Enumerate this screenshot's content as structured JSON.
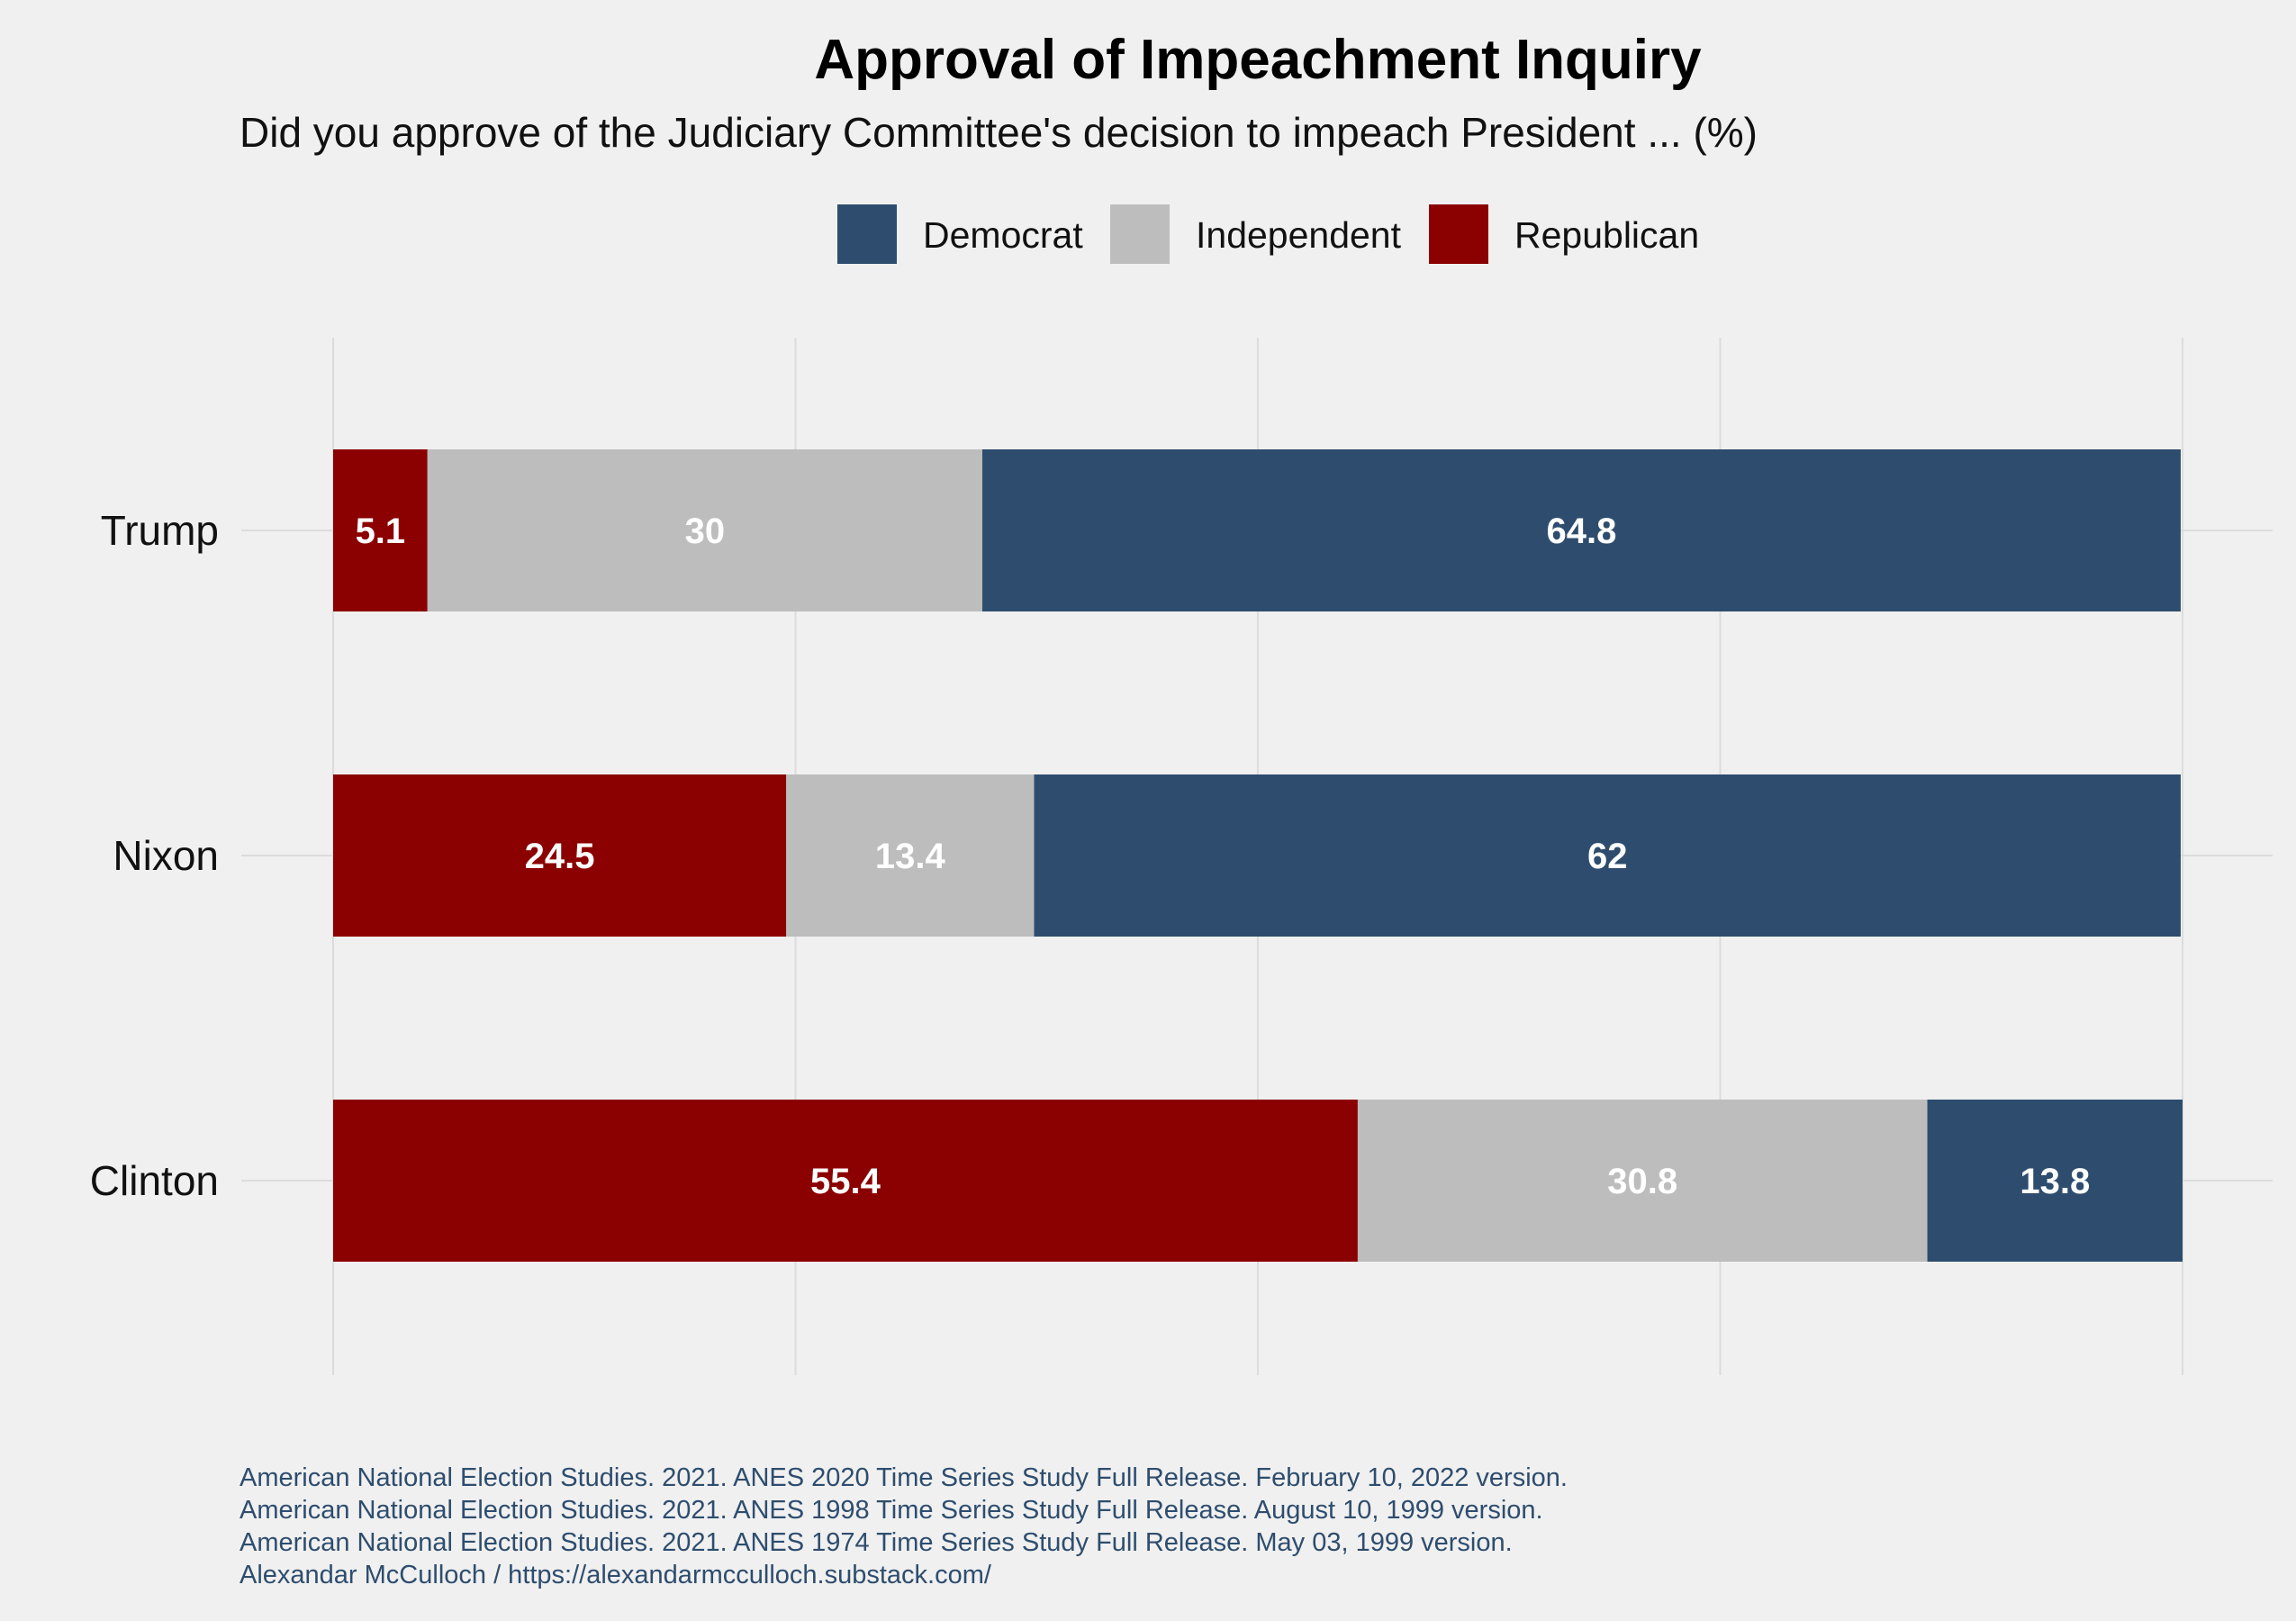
{
  "colors": {
    "background": "#f0f0f0",
    "grid": "#dcdcdc",
    "caption": "#2e4d6e"
  },
  "chart_data": {
    "type": "bar",
    "orientation": "horizontal",
    "stacked": true,
    "title": "Approval of Impeachment Inquiry",
    "subtitle": "Did you approve of the Judiciary Committee's decision to impeach President ... (%)",
    "xlabel": "",
    "ylabel": "",
    "xlim": [
      0,
      100
    ],
    "grid": true,
    "legend_position": "top",
    "categories": [
      "Trump",
      "Nixon",
      "Clinton"
    ],
    "stack_order": [
      "Republican",
      "Independent",
      "Democrat"
    ],
    "legend_order": [
      "Democrat",
      "Independent",
      "Republican"
    ],
    "series": [
      {
        "name": "Republican",
        "color": "#8b0000",
        "values": [
          5.1,
          24.5,
          55.4
        ]
      },
      {
        "name": "Independent",
        "color": "#bdbdbd",
        "values": [
          30,
          13.4,
          30.8
        ]
      },
      {
        "name": "Democrat",
        "color": "#2e4d6e",
        "values": [
          64.8,
          62,
          13.8
        ]
      }
    ],
    "caption": [
      "American National Election Studies. 2021. ANES 2020 Time Series Study Full Release. February 10, 2022 version.",
      "American National Election Studies. 2021. ANES 1998 Time Series Study Full Release. August 10, 1999 version.",
      "American National Election Studies. 2021. ANES 1974 Time Series Study Full Release. May 03, 1999 version.",
      "Alexandar McCulloch / https://alexandarmcculloch.substack.com/"
    ]
  }
}
